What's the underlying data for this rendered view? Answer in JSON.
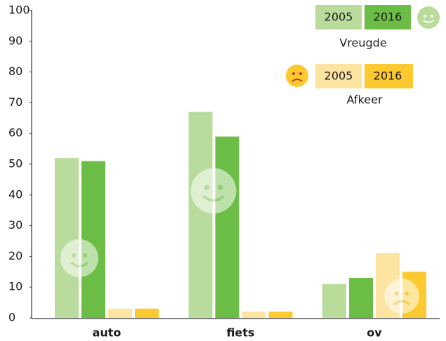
{
  "chart_data": {
    "type": "bar",
    "categories": [
      "auto",
      "fiets",
      "ov"
    ],
    "series": [
      {
        "name": "2005",
        "group": "Vreugde",
        "color": "#b9dc9c",
        "values": [
          52,
          67,
          11
        ]
      },
      {
        "name": "2016",
        "group": "Vreugde",
        "color": "#6cbd45",
        "values": [
          51,
          59,
          13
        ]
      },
      {
        "name": "2005",
        "group": "Afkeer",
        "color": "#fde4a0",
        "values": [
          3,
          2,
          21
        ]
      },
      {
        "name": "2016",
        "group": "Afkeer",
        "color": "#fcc930",
        "values": [
          3,
          2,
          15
        ]
      }
    ],
    "ylim": [
      0,
      100
    ],
    "yticks": [
      0,
      10,
      20,
      30,
      40,
      50,
      60,
      70,
      80,
      90,
      100
    ],
    "grid": false
  }
}
